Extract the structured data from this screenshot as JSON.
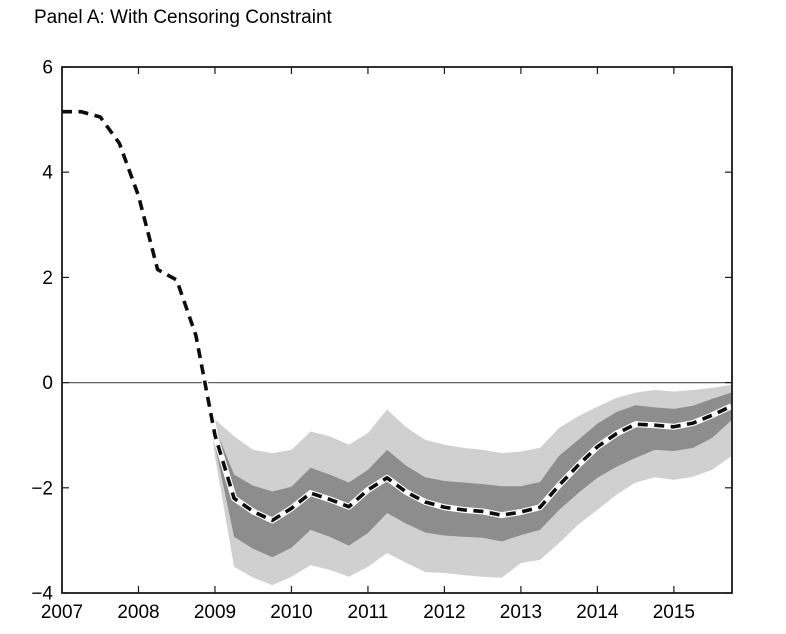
{
  "title": "Panel A: With Censoring Constraint",
  "colors": {
    "line": "#0d0d0d",
    "line_halo": "#ffffff",
    "inner_band": "#8d8d8d",
    "outer_band": "#d0d0d0",
    "axis": "#1a1a1a",
    "zero_line": "#606060",
    "text": "#000000",
    "background": "#ffffff"
  },
  "chart_data": {
    "type": "line",
    "title": "Panel A: With Censoring Constraint",
    "xlabel": "",
    "ylabel": "",
    "xlim": [
      2007,
      2015.76
    ],
    "ylim": [
      -4,
      6
    ],
    "x_ticks": [
      2007,
      2008,
      2009,
      2010,
      2011,
      2012,
      2013,
      2014,
      2015
    ],
    "y_ticks": [
      -4,
      -2,
      0,
      2,
      4,
      6
    ],
    "grid": false,
    "zero_line": 0,
    "legend": "none",
    "series": [
      {
        "name": "outer-band",
        "type": "band",
        "x": [
          2008.87,
          2009,
          2009.25,
          2009.5,
          2009.75,
          2010,
          2010.25,
          2010.5,
          2010.75,
          2011,
          2011.25,
          2011.5,
          2011.75,
          2012,
          2012.25,
          2012.5,
          2012.75,
          2013,
          2013.25,
          2013.5,
          2013.75,
          2014,
          2014.25,
          2014.5,
          2014.75,
          2015,
          2015.25,
          2015.5,
          2015.75
        ],
        "top": [
          0.0,
          -0.7,
          -1.02,
          -1.28,
          -1.34,
          -1.28,
          -0.93,
          -1.02,
          -1.18,
          -0.96,
          -0.51,
          -0.85,
          -1.09,
          -1.18,
          -1.24,
          -1.28,
          -1.34,
          -1.31,
          -1.24,
          -0.86,
          -0.64,
          -0.46,
          -0.29,
          -0.19,
          -0.14,
          -0.17,
          -0.14,
          -0.1,
          -0.04
        ],
        "bottom": [
          0.0,
          -1.4,
          -3.5,
          -3.71,
          -3.85,
          -3.69,
          -3.47,
          -3.56,
          -3.69,
          -3.5,
          -3.24,
          -3.43,
          -3.6,
          -3.62,
          -3.66,
          -3.69,
          -3.71,
          -3.43,
          -3.37,
          -3.05,
          -2.7,
          -2.42,
          -2.13,
          -1.9,
          -1.8,
          -1.85,
          -1.79,
          -1.66,
          -1.4
        ]
      },
      {
        "name": "inner-band",
        "type": "band",
        "x": [
          2008.87,
          2009,
          2009.25,
          2009.5,
          2009.75,
          2010,
          2010.25,
          2010.5,
          2010.75,
          2011,
          2011.25,
          2011.5,
          2011.75,
          2012,
          2012.25,
          2012.5,
          2012.75,
          2013,
          2013.25,
          2013.5,
          2013.75,
          2014,
          2014.25,
          2014.5,
          2014.75,
          2015,
          2015.25,
          2015.5,
          2015.75
        ],
        "top": [
          0.0,
          -0.85,
          -1.75,
          -1.96,
          -2.07,
          -1.98,
          -1.62,
          -1.75,
          -1.9,
          -1.66,
          -1.28,
          -1.58,
          -1.8,
          -1.87,
          -1.9,
          -1.93,
          -1.97,
          -1.97,
          -1.89,
          -1.39,
          -1.09,
          -0.78,
          -0.56,
          -0.43,
          -0.47,
          -0.5,
          -0.44,
          -0.31,
          -0.19
        ],
        "bottom": [
          0.0,
          -1.2,
          -2.93,
          -3.16,
          -3.32,
          -3.14,
          -2.8,
          -2.93,
          -3.1,
          -2.86,
          -2.48,
          -2.68,
          -2.85,
          -2.91,
          -2.93,
          -2.95,
          -3.02,
          -2.9,
          -2.8,
          -2.42,
          -2.1,
          -1.81,
          -1.6,
          -1.43,
          -1.28,
          -1.3,
          -1.24,
          -1.05,
          -0.72
        ]
      },
      {
        "name": "point-forecast",
        "type": "dashed-line",
        "x": [
          2007,
          2007.25,
          2007.5,
          2007.75,
          2008,
          2008.25,
          2008.5,
          2008.75,
          2009,
          2009.25,
          2009.5,
          2009.75,
          2010,
          2010.25,
          2010.5,
          2010.75,
          2011,
          2011.25,
          2011.5,
          2011.75,
          2012,
          2012.25,
          2012.5,
          2012.75,
          2013,
          2013.25,
          2013.5,
          2013.75,
          2014,
          2014.25,
          2014.5,
          2014.75,
          2015,
          2015.25,
          2015.5,
          2015.75
        ],
        "y": [
          5.15,
          5.15,
          5.05,
          4.55,
          3.55,
          2.15,
          1.95,
          0.9,
          -1.0,
          -2.2,
          -2.45,
          -2.62,
          -2.39,
          -2.1,
          -2.22,
          -2.36,
          -2.04,
          -1.81,
          -2.08,
          -2.27,
          -2.37,
          -2.42,
          -2.45,
          -2.52,
          -2.46,
          -2.37,
          -1.95,
          -1.57,
          -1.22,
          -0.97,
          -0.79,
          -0.81,
          -0.84,
          -0.77,
          -0.62,
          -0.45
        ]
      }
    ]
  }
}
